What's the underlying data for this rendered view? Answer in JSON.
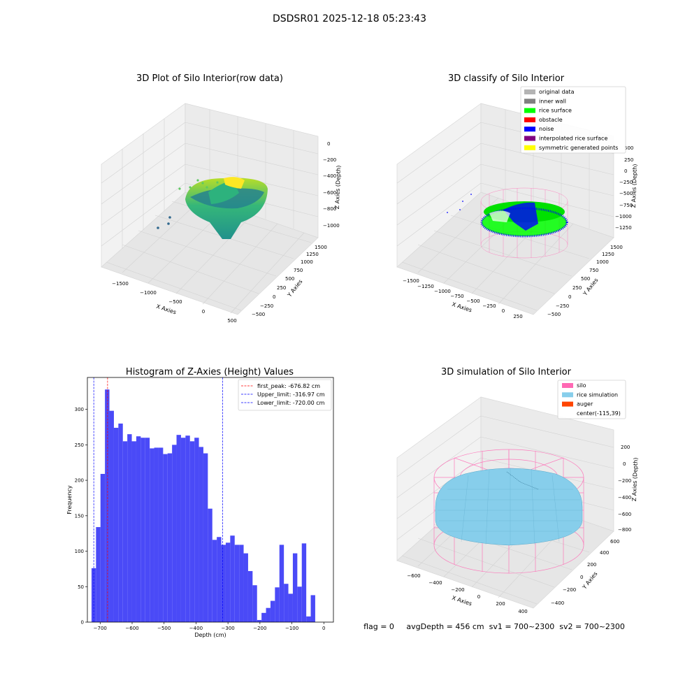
{
  "suptitle": "DSDSR01 2025-12-18 05:23:43",
  "colors": {
    "hist_bar": "#4a4af7",
    "peak_line": "#ff0000",
    "limit_line": "#0000ff",
    "silo": "#ff69b4",
    "rice_sim": "#87ceeb",
    "auger": "#ff4500",
    "rice_surface": "#00ff00",
    "noise": "#0000ff"
  },
  "panel1": {
    "title": "3D Plot of Silo Interior(row data)",
    "xlabel": "X Axies",
    "ylabel": "Y Axies",
    "zlabel": "Z Axies (Depth)",
    "xticks": [
      "−1500",
      "−1000",
      "−500",
      "0",
      "500"
    ],
    "yticks": [
      "−500",
      "−250",
      "0",
      "250",
      "500",
      "750",
      "1000",
      "1250",
      "1500"
    ],
    "zticks": [
      "0",
      "−200",
      "−400",
      "−600",
      "−800",
      "−1000"
    ]
  },
  "panel2": {
    "title": "3D classify of Silo Interior",
    "xlabel": "X Axies",
    "ylabel": "Y Axies",
    "zlabel": "Z Axies (Depth)",
    "xticks": [
      "−1500",
      "−1250",
      "−1000",
      "−750",
      "−500",
      "−250",
      "0",
      "250"
    ],
    "yticks": [
      "−500",
      "−250",
      "0",
      "250",
      "500",
      "750",
      "1000",
      "1250",
      "1500"
    ],
    "zticks": [
      "500",
      "250",
      "0",
      "−250",
      "−500",
      "−750",
      "−1000",
      "−1250"
    ],
    "legend": [
      {
        "label": "original data",
        "color": "#b4b4b4"
      },
      {
        "label": "inner wall",
        "color": "#808080"
      },
      {
        "label": "rice surface",
        "color": "#00ff00"
      },
      {
        "label": "obstacle",
        "color": "#ff0000"
      },
      {
        "label": "noise",
        "color": "#0000ff"
      },
      {
        "label": "interpolated rice surface",
        "color": "#800080"
      },
      {
        "label": "symmetric generated points",
        "color": "#ffff00"
      }
    ]
  },
  "panel4": {
    "title": "3D simulation of Silo Interior",
    "xlabel": "X Axies",
    "ylabel": "Y Axies",
    "zlabel": "Z Axies (Depth)",
    "xticks": [
      "−600",
      "−400",
      "−200",
      "0",
      "200",
      "400"
    ],
    "yticks": [
      "−400",
      "−200",
      "0",
      "200",
      "400",
      "600"
    ],
    "zticks": [
      "200",
      "0",
      "−200",
      "−400",
      "−600",
      "−800"
    ],
    "legend": [
      {
        "label": "silo",
        "color": "#ff69b4"
      },
      {
        "label": "rice simulation",
        "color": "#87ceeb"
      },
      {
        "label": "auger",
        "color": "#ff4500"
      },
      {
        "label": "center(-115,39)",
        "color": ""
      }
    ]
  },
  "status": "flag = 0     avgDepth = 456 cm  sv1 = 700~2300  sv2 = 700~2300",
  "chart_data": {
    "type": "bar",
    "title": "Histogram of Z-Axies (Height) Values",
    "xlabel": "Depth (cm)",
    "ylabel": "Frequency",
    "xlim": [
      -740,
      30
    ],
    "ylim": [
      0,
      345
    ],
    "xticks": [
      -700,
      -600,
      -500,
      -400,
      -300,
      -200,
      -100,
      0
    ],
    "yticks": [
      0,
      50,
      100,
      150,
      200,
      250,
      300
    ],
    "bin_width": 14.0,
    "bin_start": -727.0,
    "values": [
      76,
      134,
      209,
      328,
      298,
      274,
      280,
      255,
      265,
      255,
      262,
      260,
      260,
      245,
      246,
      246,
      237,
      238,
      250,
      264,
      260,
      263,
      255,
      260,
      247,
      238,
      160,
      116,
      120,
      109,
      112,
      122,
      109,
      109,
      97,
      72,
      52,
      3,
      13,
      20,
      30,
      49,
      109,
      54,
      40,
      97,
      50,
      111,
      8,
      38
    ],
    "vlines": [
      {
        "name": "first_peak: -676.82 cm",
        "x": -676.82,
        "color": "#ff0000"
      },
      {
        "name": "Upper_limit: -316.97 cm",
        "x": -316.97,
        "color": "#0000ff"
      },
      {
        "name": "Lower_limit: -720.00 cm",
        "x": -720.0,
        "color": "#0000ff"
      }
    ],
    "grid": false,
    "legend_position": "top-right"
  }
}
